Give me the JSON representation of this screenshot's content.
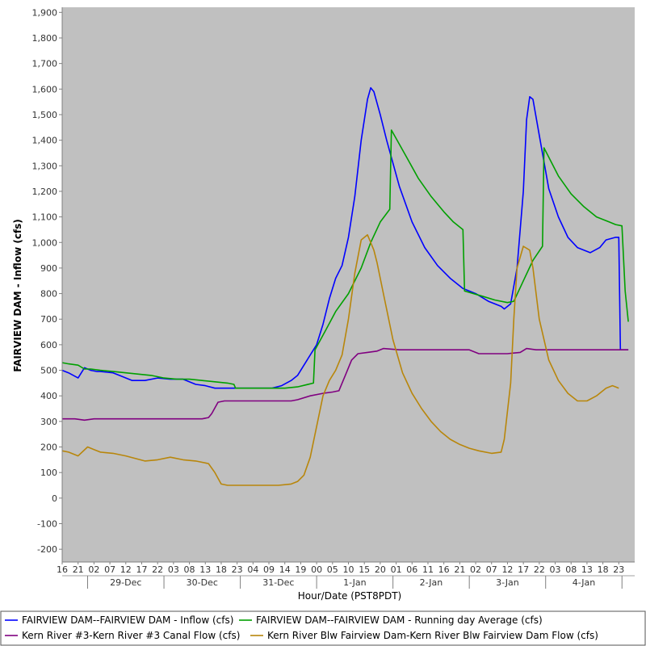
{
  "chart_data": {
    "type": "line",
    "title": "",
    "xlabel": "Hour/Date (PST8PDT)",
    "ylabel": "FAIRVIEW DAM - Inflow (cfs)",
    "ylim": [
      -250,
      1920
    ],
    "xlim": [
      "2021-12-28 16:00",
      "2022-01-05 04:00"
    ],
    "y_ticks": [
      -200,
      -100,
      0,
      100,
      200,
      300,
      400,
      500,
      600,
      700,
      800,
      900,
      1000,
      1100,
      1200,
      1300,
      1400,
      1500,
      1600,
      1700,
      1800,
      1900
    ],
    "y_tick_labels": [
      "-200",
      "-100",
      "0",
      "100",
      "200",
      "300",
      "400",
      "500",
      "600",
      "700",
      "800",
      "900",
      "1,000",
      "1,100",
      "1,200",
      "1,300",
      "1,400",
      "1,500",
      "1,600",
      "1,700",
      "1,800",
      "1,900"
    ],
    "x_hour_ticks": [
      {
        "t": "2021-12-28 16:00",
        "label": "16"
      },
      {
        "t": "2021-12-28 21:00",
        "label": "21"
      },
      {
        "t": "2021-12-29 02:00",
        "label": "02"
      },
      {
        "t": "2021-12-29 07:00",
        "label": "07"
      },
      {
        "t": "2021-12-29 12:00",
        "label": "12"
      },
      {
        "t": "2021-12-29 17:00",
        "label": "17"
      },
      {
        "t": "2021-12-29 22:00",
        "label": "22"
      },
      {
        "t": "2021-12-30 03:00",
        "label": "03"
      },
      {
        "t": "2021-12-30 08:00",
        "label": "08"
      },
      {
        "t": "2021-12-30 13:00",
        "label": "13"
      },
      {
        "t": "2021-12-30 18:00",
        "label": "18"
      },
      {
        "t": "2021-12-30 23:00",
        "label": "23"
      },
      {
        "t": "2021-12-31 04:00",
        "label": "04"
      },
      {
        "t": "2021-12-31 09:00",
        "label": "09"
      },
      {
        "t": "2021-12-31 14:00",
        "label": "14"
      },
      {
        "t": "2021-12-31 19:00",
        "label": "19"
      },
      {
        "t": "2022-01-01 00:00",
        "label": "00"
      },
      {
        "t": "2022-01-01 05:00",
        "label": "05"
      },
      {
        "t": "2022-01-01 10:00",
        "label": "10"
      },
      {
        "t": "2022-01-01 15:00",
        "label": "15"
      },
      {
        "t": "2022-01-01 20:00",
        "label": "20"
      },
      {
        "t": "2022-01-02 01:00",
        "label": "01"
      },
      {
        "t": "2022-01-02 06:00",
        "label": "06"
      },
      {
        "t": "2022-01-02 11:00",
        "label": "11"
      },
      {
        "t": "2022-01-02 16:00",
        "label": "16"
      },
      {
        "t": "2022-01-02 21:00",
        "label": "21"
      },
      {
        "t": "2022-01-03 02:00",
        "label": "02"
      },
      {
        "t": "2022-01-03 07:00",
        "label": "07"
      },
      {
        "t": "2022-01-03 12:00",
        "label": "12"
      },
      {
        "t": "2022-01-03 17:00",
        "label": "17"
      },
      {
        "t": "2022-01-03 22:00",
        "label": "22"
      },
      {
        "t": "2022-01-04 03:00",
        "label": "03"
      },
      {
        "t": "2022-01-04 08:00",
        "label": "08"
      },
      {
        "t": "2022-01-04 13:00",
        "label": "13"
      },
      {
        "t": "2022-01-04 18:00",
        "label": "18"
      },
      {
        "t": "2022-01-04 23:00",
        "label": "23"
      }
    ],
    "x_day_ticks": [
      {
        "t": "2021-12-29 12:00",
        "label": "29-Dec"
      },
      {
        "t": "2021-12-30 12:00",
        "label": "30-Dec"
      },
      {
        "t": "2021-12-31 12:00",
        "label": "31-Dec"
      },
      {
        "t": "2022-01-01 12:00",
        "label": "1-Jan"
      },
      {
        "t": "2022-01-02 12:00",
        "label": "2-Jan"
      },
      {
        "t": "2022-01-03 12:00",
        "label": "3-Jan"
      },
      {
        "t": "2022-01-04 12:00",
        "label": "4-Jan"
      }
    ],
    "day_boundaries": [
      "2021-12-29 00:00",
      "2021-12-30 00:00",
      "2021-12-31 00:00",
      "2022-01-01 00:00",
      "2022-01-02 00:00",
      "2022-01-03 00:00",
      "2022-01-04 00:00",
      "2022-01-05 00:00"
    ],
    "grid": false,
    "background": "#c0c0c0",
    "legend_position": "bottom",
    "series": [
      {
        "name": "FAIRVIEW DAM--FAIRVIEW DAM - Inflow  (cfs)",
        "color": "#0000ff",
        "x": [
          "2021-12-28 16:00",
          "2021-12-28 18:00",
          "2021-12-28 21:00",
          "2021-12-28 23:00",
          "2021-12-29 01:00",
          "2021-12-29 03:00",
          "2021-12-29 04:00",
          "2021-12-29 08:00",
          "2021-12-29 10:00",
          "2021-12-29 14:00",
          "2021-12-29 18:00",
          "2021-12-29 22:00",
          "2021-12-30 02:00",
          "2021-12-30 06:00",
          "2021-12-30 10:00",
          "2021-12-30 13:00",
          "2021-12-30 16:00",
          "2021-12-30 18:00",
          "2021-12-30 22:00",
          "2021-12-31 06:00",
          "2021-12-31 10:00",
          "2021-12-31 13:00",
          "2021-12-31 16:00",
          "2021-12-31 18:00",
          "2021-12-31 21:00",
          "2022-01-01 00:00",
          "2022-01-01 02:00",
          "2022-01-01 04:00",
          "2022-01-01 06:00",
          "2022-01-01 08:00",
          "2022-01-01 10:00",
          "2022-01-01 12:00",
          "2022-01-01 14:00",
          "2022-01-01 16:00",
          "2022-01-01 17:00",
          "2022-01-01 18:00",
          "2022-01-01 20:00",
          "2022-01-01 22:00",
          "2022-01-02 02:00",
          "2022-01-02 06:00",
          "2022-01-02 10:00",
          "2022-01-02 14:00",
          "2022-01-02 18:00",
          "2022-01-02 22:00",
          "2022-01-03 02:00",
          "2022-01-03 06:00",
          "2022-01-03 10:00",
          "2022-01-03 11:00",
          "2022-01-03 13:00",
          "2022-01-03 15:00",
          "2022-01-03 17:00",
          "2022-01-03 18:00",
          "2022-01-03 19:00",
          "2022-01-03 20:00",
          "2022-01-03 22:00",
          "2022-01-04 01:00",
          "2022-01-04 04:00",
          "2022-01-04 07:00",
          "2022-01-04 10:00",
          "2022-01-04 14:00",
          "2022-01-04 17:00",
          "2022-01-04 19:00",
          "2022-01-04 22:00",
          "2022-01-04 23:00",
          "2022-01-04 23:30",
          "2022-01-05 02:00"
        ],
        "y": [
          500,
          490,
          470,
          510,
          500,
          495,
          495,
          490,
          480,
          460,
          460,
          470,
          465,
          465,
          445,
          440,
          430,
          430,
          430,
          430,
          430,
          440,
          460,
          480,
          540,
          600,
          680,
          780,
          860,
          910,
          1020,
          1180,
          1400,
          1560,
          1605,
          1590,
          1500,
          1400,
          1220,
          1080,
          980,
          910,
          860,
          820,
          800,
          770,
          750,
          740,
          760,
          900,
          1200,
          1480,
          1570,
          1560,
          1420,
          1210,
          1100,
          1020,
          980,
          960,
          980,
          1010,
          1020,
          1020,
          580,
          580
        ]
      },
      {
        "name": "FAIRVIEW DAM--FAIRVIEW DAM - Running day Average  (cfs)",
        "color": "#00a000",
        "x": [
          "2021-12-28 16:00",
          "2021-12-28 18:00",
          "2021-12-28 21:00",
          "2021-12-28 23:00",
          "2021-12-29 01:00",
          "2021-12-29 04:00",
          "2021-12-29 08:00",
          "2021-12-29 12:00",
          "2021-12-29 16:00",
          "2021-12-29 20:00",
          "2021-12-30 00:00",
          "2021-12-30 04:00",
          "2021-12-30 08:00",
          "2021-12-30 12:00",
          "2021-12-30 16:00",
          "2021-12-30 20:00",
          "2021-12-30 22:00",
          "2021-12-30 22:30",
          "2021-12-31 04:00",
          "2021-12-31 10:00",
          "2021-12-31 14:00",
          "2021-12-31 18:00",
          "2021-12-31 23:00",
          "2021-12-31 23:30",
          "2022-01-01 03:00",
          "2022-01-01 06:00",
          "2022-01-01 10:00",
          "2022-01-01 14:00",
          "2022-01-01 17:00",
          "2022-01-01 20:00",
          "2022-01-01 23:00",
          "2022-01-01 23:30",
          "2022-01-02 04:00",
          "2022-01-02 08:00",
          "2022-01-02 12:00",
          "2022-01-02 16:00",
          "2022-01-02 19:00",
          "2022-01-02 22:00",
          "2022-01-02 22:30",
          "2022-01-03 04:00",
          "2022-01-03 08:00",
          "2022-01-03 12:00",
          "2022-01-03 14:00",
          "2022-01-03 17:00",
          "2022-01-03 20:00",
          "2022-01-03 23:00",
          "2022-01-03 23:30",
          "2022-01-04 04:00",
          "2022-01-04 08:00",
          "2022-01-04 12:00",
          "2022-01-04 16:00",
          "2022-01-04 20:00",
          "2022-01-04 22:00",
          "2022-01-05 00:00",
          "2022-01-05 01:00",
          "2022-01-05 02:00"
        ],
        "y": [
          530,
          525,
          520,
          505,
          505,
          500,
          495,
          490,
          485,
          480,
          470,
          465,
          465,
          460,
          455,
          450,
          445,
          430,
          430,
          430,
          430,
          435,
          450,
          580,
          660,
          730,
          800,
          900,
          1000,
          1080,
          1130,
          1440,
          1340,
          1250,
          1180,
          1120,
          1080,
          1050,
          810,
          790,
          775,
          765,
          770,
          850,
          930,
          985,
          1370,
          1260,
          1190,
          1140,
          1100,
          1080,
          1070,
          1065,
          810,
          690
        ]
      },
      {
        "name": "Kern River #3-Kern River #3 Canal Flow  (cfs)",
        "color": "#800080",
        "x": [
          "2021-12-28 16:00",
          "2021-12-28 20:00",
          "2021-12-28 23:00",
          "2021-12-29 02:00",
          "2021-12-29 05:00",
          "2021-12-29 07:00",
          "2021-12-29 12:00",
          "2021-12-29 18:00",
          "2021-12-30 00:00",
          "2021-12-30 06:00",
          "2021-12-30 12:00",
          "2021-12-30 14:00",
          "2021-12-30 15:00",
          "2021-12-30 17:00",
          "2021-12-30 19:00",
          "2021-12-31 00:00",
          "2021-12-31 06:00",
          "2021-12-31 12:00",
          "2021-12-31 16:00",
          "2021-12-31 18:00",
          "2021-12-31 22:00",
          "2022-01-01 02:00",
          "2022-01-01 05:00",
          "2022-01-01 07:00",
          "2022-01-01 09:00",
          "2022-01-01 11:00",
          "2022-01-01 13:00",
          "2022-01-01 16:00",
          "2022-01-01 19:00",
          "2022-01-01 21:00",
          "2022-01-02 02:00",
          "2022-01-02 10:00",
          "2022-01-02 18:00",
          "2022-01-03 00:00",
          "2022-01-03 03:00",
          "2022-01-03 08:00",
          "2022-01-03 12:00",
          "2022-01-03 16:00",
          "2022-01-03 18:00",
          "2022-01-03 21:00",
          "2022-01-04 06:00",
          "2022-01-04 14:00",
          "2022-01-04 22:00",
          "2022-01-05 02:00"
        ],
        "y": [
          310,
          310,
          305,
          310,
          310,
          310,
          310,
          310,
          310,
          310,
          310,
          315,
          330,
          375,
          380,
          380,
          380,
          380,
          380,
          385,
          400,
          410,
          415,
          420,
          480,
          540,
          565,
          570,
          575,
          585,
          580,
          580,
          580,
          580,
          565,
          565,
          565,
          570,
          585,
          580,
          580,
          580,
          580,
          580
        ]
      },
      {
        "name": "Kern River Blw Fairview Dam-Kern River Blw Fairview Dam Flow  (cfs)",
        "color": "#b8860b",
        "x": [
          "2021-12-28 16:00",
          "2021-12-28 18:00",
          "2021-12-28 21:00",
          "2021-12-29 00:00",
          "2021-12-29 02:00",
          "2021-12-29 04:00",
          "2021-12-29 08:00",
          "2021-12-29 12:00",
          "2021-12-29 18:00",
          "2021-12-29 22:00",
          "2021-12-30 02:00",
          "2021-12-30 06:00",
          "2021-12-30 10:00",
          "2021-12-30 14:00",
          "2021-12-30 16:00",
          "2021-12-30 18:00",
          "2021-12-30 20:00",
          "2021-12-31 04:00",
          "2021-12-31 08:00",
          "2021-12-31 12:00",
          "2021-12-31 16:00",
          "2021-12-31 18:00",
          "2021-12-31 20:00",
          "2021-12-31 22:00",
          "2022-01-01 00:00",
          "2022-01-01 02:00",
          "2022-01-01 04:00",
          "2022-01-01 06:00",
          "2022-01-01 08:00",
          "2022-01-01 10:00",
          "2022-01-01 12:00",
          "2022-01-01 14:00",
          "2022-01-01 16:00",
          "2022-01-01 17:00",
          "2022-01-01 18:00",
          "2022-01-01 19:00",
          "2022-01-01 21:00",
          "2022-01-02 00:00",
          "2022-01-02 03:00",
          "2022-01-02 06:00",
          "2022-01-02 09:00",
          "2022-01-02 12:00",
          "2022-01-02 15:00",
          "2022-01-02 18:00",
          "2022-01-02 21:00",
          "2022-01-03 00:00",
          "2022-01-03 03:00",
          "2022-01-03 07:00",
          "2022-01-03 10:00",
          "2022-01-03 11:00",
          "2022-01-03 13:00",
          "2022-01-03 14:00",
          "2022-01-03 15:00",
          "2022-01-03 17:00",
          "2022-01-03 19:00",
          "2022-01-03 20:00",
          "2022-01-03 22:00",
          "2022-01-04 01:00",
          "2022-01-04 04:00",
          "2022-01-04 07:00",
          "2022-01-04 10:00",
          "2022-01-04 13:00",
          "2022-01-04 16:00",
          "2022-01-04 19:00",
          "2022-01-04 21:00",
          "2022-01-04 22:00",
          "2022-01-04 23:00"
        ],
        "y": [
          185,
          180,
          165,
          200,
          190,
          180,
          175,
          165,
          145,
          150,
          160,
          150,
          145,
          135,
          100,
          55,
          50,
          50,
          50,
          50,
          55,
          65,
          90,
          160,
          280,
          400,
          460,
          500,
          560,
          700,
          880,
          1010,
          1030,
          1000,
          970,
          920,
          800,
          620,
          490,
          410,
          350,
          300,
          260,
          230,
          210,
          195,
          185,
          175,
          180,
          230,
          450,
          700,
          900,
          985,
          970,
          900,
          700,
          540,
          460,
          410,
          380,
          380,
          400,
          430,
          440,
          435,
          430
        ]
      }
    ]
  }
}
